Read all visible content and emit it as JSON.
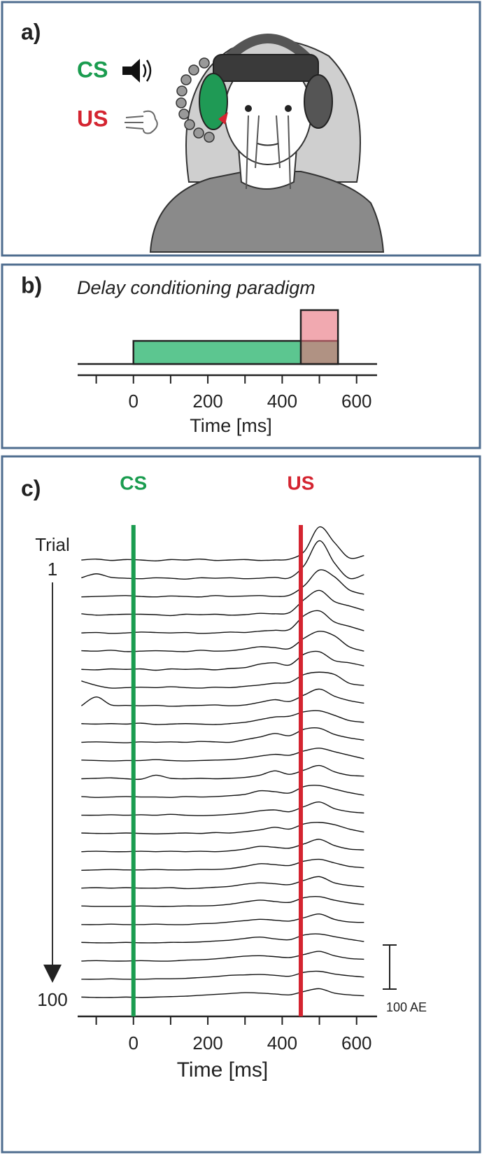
{
  "illustration": {
    "label": "a)",
    "cs": "CS",
    "us": "US"
  },
  "chart_data": [
    {
      "type": "timeline",
      "label": "b)",
      "title": "Delay conditioning paradigm",
      "xlabel": "Time [ms]",
      "xlim": [
        -150,
        640
      ],
      "xticks": [
        0,
        200,
        400,
        600
      ],
      "xminor_ticks": [
        -100,
        100,
        300,
        500
      ],
      "intervals": [
        {
          "start": 0,
          "end": 550,
          "color": "#5cc690"
        },
        {
          "start": 450,
          "end": 550,
          "color": "#e8707c"
        }
      ]
    },
    {
      "type": "waterfall",
      "label": "c)",
      "xlabel": "Time [ms]",
      "ylabel": "Trial",
      "first_label": "1",
      "last_label": "100",
      "xlim": [
        -150,
        640
      ],
      "xticks": [
        0,
        200,
        400,
        600
      ],
      "xminor_ticks": [
        -100,
        100,
        300,
        500
      ],
      "markers": [
        {
          "name": "CS",
          "x": 0,
          "color": "#1a9c4f"
        },
        {
          "name": "US",
          "x": 450,
          "color": "#d42430"
        }
      ],
      "scale_bar": {
        "value": 100,
        "label": "100 AE"
      },
      "x": [
        -140,
        -100,
        -60,
        -20,
        20,
        60,
        100,
        140,
        180,
        220,
        260,
        300,
        340,
        380,
        420,
        460,
        500,
        540,
        580,
        620
      ],
      "traces": [
        [
          0,
          2,
          -1,
          1,
          0,
          -2,
          1,
          0,
          2,
          -1,
          0,
          1,
          -1,
          0,
          2,
          20,
          75,
          40,
          5,
          10
        ],
        [
          1,
          10,
          2,
          0,
          -1,
          1,
          0,
          -2,
          1,
          0,
          1,
          -1,
          0,
          2,
          1,
          30,
          85,
          35,
          0,
          8
        ],
        [
          -1,
          0,
          1,
          2,
          0,
          -1,
          1,
          0,
          -1,
          2,
          0,
          1,
          2,
          0,
          3,
          25,
          60,
          45,
          15,
          5
        ],
        [
          2,
          -1,
          0,
          1,
          1,
          0,
          -2,
          1,
          0,
          1,
          -1,
          0,
          3,
          2,
          5,
          35,
          55,
          30,
          20,
          10
        ],
        [
          0,
          1,
          -1,
          0,
          2,
          1,
          0,
          1,
          -1,
          0,
          2,
          1,
          4,
          6,
          8,
          40,
          50,
          25,
          15,
          5
        ],
        [
          1,
          0,
          2,
          -1,
          0,
          1,
          0,
          -1,
          2,
          0,
          1,
          5,
          10,
          8,
          6,
          30,
          45,
          35,
          10,
          0
        ],
        [
          0,
          -1,
          1,
          0,
          1,
          -2,
          1,
          0,
          1,
          -1,
          2,
          4,
          12,
          15,
          10,
          35,
          40,
          20,
          15,
          8
        ],
        [
          15,
          5,
          -1,
          0,
          1,
          0,
          2,
          0,
          -1,
          1,
          0,
          3,
          6,
          10,
          12,
          30,
          35,
          30,
          10,
          5
        ],
        [
          0,
          20,
          2,
          1,
          0,
          1,
          -1,
          0,
          1,
          2,
          0,
          2,
          8,
          14,
          10,
          25,
          38,
          22,
          12,
          6
        ],
        [
          1,
          0,
          1,
          0,
          2,
          -1,
          0,
          1,
          0,
          -1,
          1,
          4,
          10,
          16,
          18,
          28,
          30,
          20,
          8,
          4
        ],
        [
          0,
          1,
          0,
          -1,
          1,
          0,
          1,
          0,
          2,
          1,
          0,
          6,
          12,
          20,
          15,
          30,
          32,
          18,
          10,
          5
        ],
        [
          1,
          0,
          -1,
          0,
          0,
          2,
          0,
          -1,
          0,
          1,
          2,
          5,
          10,
          14,
          12,
          22,
          28,
          20,
          12,
          4
        ],
        [
          0,
          1,
          2,
          0,
          -1,
          8,
          1,
          0,
          1,
          0,
          1,
          3,
          8,
          18,
          10,
          20,
          30,
          16,
          8,
          6
        ],
        [
          1,
          -1,
          0,
          1,
          0,
          0,
          -1,
          1,
          0,
          1,
          3,
          6,
          14,
          12,
          9,
          24,
          26,
          18,
          10,
          4
        ],
        [
          0,
          0,
          1,
          0,
          1,
          0,
          2,
          0,
          -1,
          0,
          2,
          5,
          10,
          12,
          8,
          20,
          30,
          15,
          8,
          5
        ],
        [
          1,
          0,
          0,
          1,
          0,
          -1,
          0,
          1,
          0,
          2,
          1,
          4,
          8,
          14,
          10,
          22,
          25,
          20,
          10,
          3
        ],
        [
          0,
          1,
          0,
          0,
          1,
          0,
          1,
          0,
          1,
          0,
          2,
          6,
          12,
          10,
          8,
          18,
          28,
          14,
          6,
          4
        ],
        [
          -1,
          0,
          1,
          0,
          0,
          1,
          0,
          0,
          1,
          1,
          3,
          8,
          14,
          12,
          10,
          20,
          24,
          16,
          8,
          5
        ],
        [
          0,
          1,
          0,
          1,
          0,
          0,
          1,
          -1,
          0,
          2,
          4,
          9,
          12,
          10,
          8,
          18,
          26,
          12,
          6,
          3
        ],
        [
          1,
          0,
          0,
          0,
          1,
          0,
          0,
          1,
          1,
          2,
          5,
          10,
          14,
          11,
          9,
          20,
          22,
          14,
          8,
          4
        ],
        [
          0,
          0,
          1,
          0,
          0,
          1,
          0,
          0,
          2,
          3,
          6,
          9,
          12,
          10,
          8,
          16,
          24,
          12,
          6,
          5
        ],
        [
          1,
          0,
          0,
          1,
          0,
          0,
          1,
          1,
          2,
          4,
          6,
          10,
          13,
          9,
          7,
          18,
          20,
          14,
          8,
          3
        ],
        [
          0,
          1,
          0,
          0,
          1,
          0,
          0,
          2,
          3,
          5,
          8,
          11,
          12,
          10,
          8,
          15,
          22,
          12,
          6,
          4
        ],
        [
          0,
          0,
          1,
          0,
          0,
          1,
          1,
          2,
          4,
          6,
          9,
          10,
          11,
          9,
          7,
          16,
          18,
          12,
          8,
          5
        ],
        [
          1,
          0,
          0,
          1,
          0,
          1,
          2,
          3,
          5,
          7,
          9,
          11,
          10,
          8,
          6,
          14,
          20,
          10,
          6,
          4
        ]
      ]
    }
  ]
}
